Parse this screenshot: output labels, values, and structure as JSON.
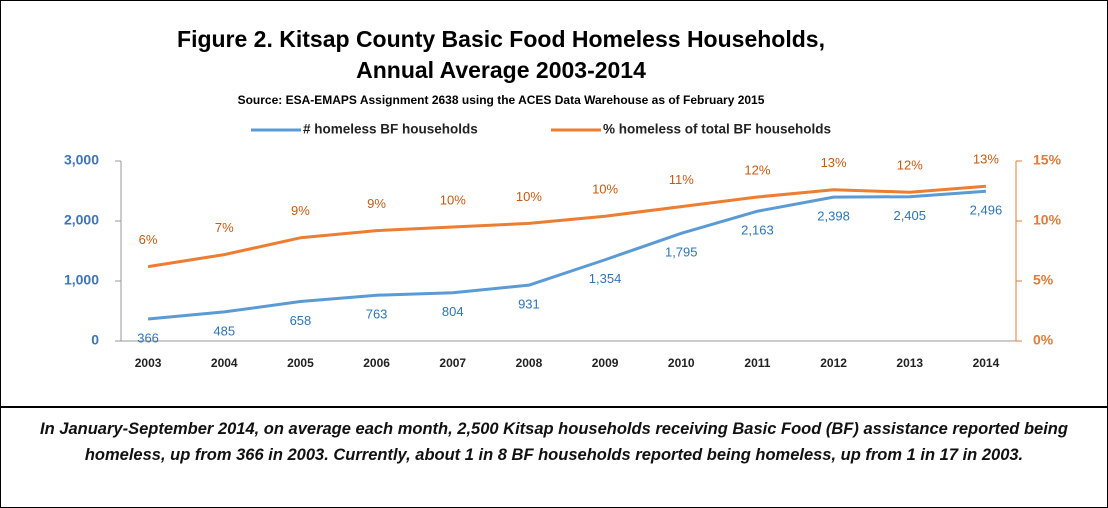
{
  "chart_data": {
    "type": "line",
    "title": [
      "Figure 2. Kitsap County Basic Food Homeless Households,",
      "Annual Average 2003-2014"
    ],
    "subtitle": "Source: ESA-EMAPS Assignment 2638 using the ACES Data Warehouse as of February 2015",
    "categories": [
      "2003",
      "2004",
      "2005",
      "2006",
      "2007",
      "2008",
      "2009",
      "2010",
      "2011",
      "2012",
      "2013",
      "2014"
    ],
    "series": [
      {
        "name": "# homeless BF households",
        "color": "#5b9bd5",
        "values": [
          366,
          485,
          658,
          763,
          804,
          931,
          1354,
          1795,
          2163,
          2398,
          2405,
          2496
        ],
        "value_labels": [
          "366",
          "485",
          "658",
          "763",
          "804",
          "931",
          "1,354",
          "1,795",
          "2,163",
          "2,398",
          "2,405",
          "2,496"
        ]
      },
      {
        "name": "% homeless of total BF households",
        "color": "#ed7d31",
        "axis": "y2",
        "values": [
          6.2,
          7.2,
          8.6,
          9.2,
          9.5,
          9.8,
          10.4,
          11.2,
          12.0,
          12.6,
          12.4,
          12.9
        ],
        "value_labels": [
          "6%",
          "7%",
          "9%",
          "9%",
          "10%",
          "10%",
          "10%",
          "11%",
          "12%",
          "13%",
          "12%",
          "13%"
        ]
      }
    ],
    "ylim": [
      0,
      3000
    ],
    "yticks": [
      0,
      {
        "value": 1000,
        "label": "1,000"
      },
      {
        "value": 2000,
        "label": "2,000"
      },
      {
        "value": 3000,
        "label": "3,000"
      }
    ],
    "y2lim": [
      0,
      15
    ],
    "y2ticks": [
      {
        "value": 0,
        "label": "0%"
      },
      {
        "value": 5,
        "label": "5%"
      },
      {
        "value": 10,
        "label": "10%"
      },
      {
        "value": 15,
        "label": "15%"
      }
    ],
    "legend": "top",
    "caption": "In January-September 2014, on average each month, 2,500 Kitsap households receiving Basic Food (BF) assistance reported being homeless, up from 366 in 2003.  Currently, about 1 in 8 BF households reported being homeless, up from 1 in 17 in 2003."
  }
}
